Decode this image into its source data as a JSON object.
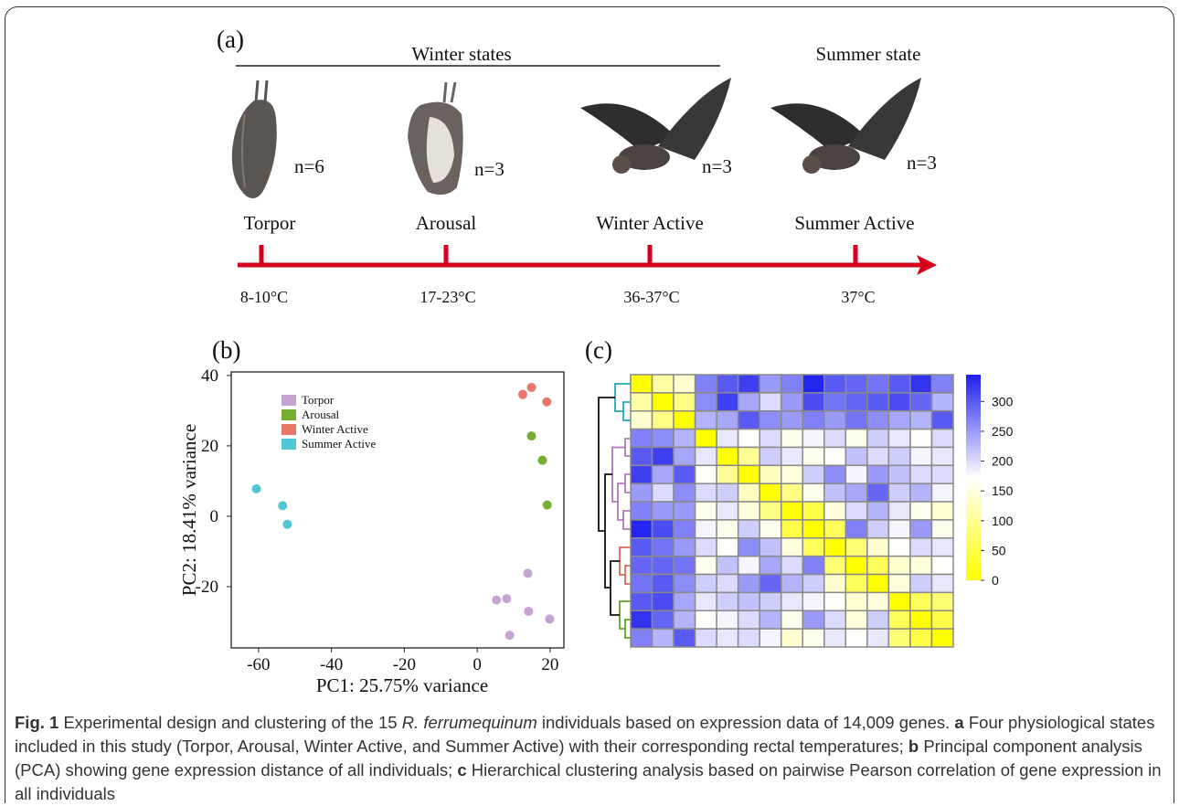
{
  "panel_a": {
    "label": "(a)",
    "winter_header": "Winter states",
    "summer_header": "Summer state",
    "states": [
      {
        "name": "Torpor",
        "count": "n=6",
        "temperature": "8-10°C"
      },
      {
        "name": "Arousal",
        "count": "n=3",
        "temperature": "17-23°C"
      },
      {
        "name": "Winter Active",
        "count": "n=3",
        "temperature": "36-37°C"
      },
      {
        "name": "Summer Active",
        "count": "n=3",
        "temperature": "37°C"
      }
    ]
  },
  "chart_data": [
    {
      "type": "scatter",
      "title": "(b)",
      "x_label": "PC1: 25.75% variance",
      "y_label": "PC2: 18.41% variance",
      "xlim": [
        -67.5,
        23.8
      ],
      "ylim": [
        -37.4,
        41
      ],
      "xticks": [
        -60,
        -40,
        -20,
        0,
        20
      ],
      "yticks": [
        -20,
        0,
        20,
        40
      ],
      "legend": "upper left",
      "series": [
        {
          "name": "Torpor",
          "color": "#c7a3d3",
          "x": [
            13.9,
            5.3,
            8.1,
            14.1,
            8.9,
            19.9
          ],
          "values": [
            -16.2,
            -23.8,
            -23.4,
            -27.0,
            -33.8,
            -29.2
          ]
        },
        {
          "name": "Arousal",
          "color": "#74ae33",
          "x": [
            14.9,
            17.9,
            19.2
          ],
          "values": [
            22.8,
            15.9,
            3.2
          ]
        },
        {
          "name": "Winter Active",
          "color": "#e8776a",
          "x": [
            12.5,
            14.9,
            19.1
          ],
          "values": [
            34.6,
            36.6,
            32.5
          ]
        },
        {
          "name": "Summer Active",
          "color": "#4fc8d4",
          "x": [
            -60.6,
            -53.4,
            -52.1
          ],
          "values": [
            7.8,
            3.0,
            -2.3
          ]
        }
      ]
    },
    {
      "type": "heatmap",
      "title": "(c)",
      "clim": [
        0,
        345
      ],
      "cticks": [
        0,
        50,
        100,
        150,
        200,
        250,
        300
      ],
      "colors": [
        "#ffff00",
        "#ffffff",
        "#1e1ef0"
      ],
      "matrix": [
        [
          0,
          110,
          140,
          270,
          300,
          320,
          250,
          270,
          340,
          300,
          290,
          280,
          300,
          330,
          270
        ],
        [
          110,
          0,
          90,
          260,
          320,
          240,
          200,
          250,
          310,
          280,
          290,
          300,
          310,
          290,
          230
        ],
        [
          140,
          90,
          0,
          230,
          240,
          300,
          260,
          250,
          270,
          250,
          280,
          260,
          240,
          230,
          300
        ],
        [
          270,
          260,
          230,
          0,
          190,
          170,
          200,
          160,
          180,
          200,
          160,
          210,
          190,
          170,
          200
        ],
        [
          300,
          320,
          240,
          190,
          0,
          100,
          210,
          190,
          160,
          170,
          220,
          200,
          210,
          180,
          190
        ],
        [
          320,
          240,
          300,
          170,
          100,
          0,
          130,
          150,
          210,
          260,
          180,
          250,
          220,
          200,
          200
        ],
        [
          250,
          200,
          260,
          200,
          210,
          130,
          0,
          90,
          160,
          220,
          240,
          290,
          210,
          230,
          180
        ],
        [
          270,
          250,
          250,
          160,
          190,
          150,
          90,
          0,
          50,
          150,
          200,
          230,
          190,
          160,
          140
        ],
        [
          340,
          310,
          270,
          180,
          160,
          210,
          160,
          50,
          0,
          60,
          270,
          210,
          180,
          250,
          160
        ],
        [
          300,
          280,
          250,
          200,
          170,
          260,
          220,
          150,
          60,
          0,
          80,
          140,
          170,
          200,
          190
        ],
        [
          290,
          290,
          280,
          160,
          220,
          180,
          240,
          200,
          270,
          80,
          0,
          60,
          140,
          150,
          170
        ],
        [
          280,
          300,
          260,
          210,
          200,
          250,
          290,
          230,
          210,
          140,
          60,
          0,
          150,
          210,
          190
        ],
        [
          300,
          310,
          240,
          190,
          210,
          220,
          210,
          190,
          180,
          170,
          140,
          150,
          0,
          60,
          80
        ],
        [
          330,
          290,
          230,
          170,
          180,
          200,
          230,
          160,
          250,
          200,
          150,
          210,
          60,
          0,
          50
        ],
        [
          270,
          230,
          300,
          200,
          190,
          200,
          180,
          140,
          160,
          190,
          170,
          190,
          80,
          50,
          0
        ]
      ]
    }
  ],
  "caption": {
    "parts": [
      "Fig. 1",
      "Experimental design and clustering of the 15",
      "R. ferrumequinum",
      "individuals based on expression data of 14,009 genes.",
      "a",
      "Four physiological states included in this study (Torpor, Arousal, Winter Active, and Summer Active) with their corresponding rectal temperatures;",
      "b",
      "Principal component analysis (PCA) showing gene expression distance of all individuals;",
      "c",
      "Hierarchical clustering analysis based on pairwise Pearson correlation of gene expression in all individuals"
    ]
  }
}
